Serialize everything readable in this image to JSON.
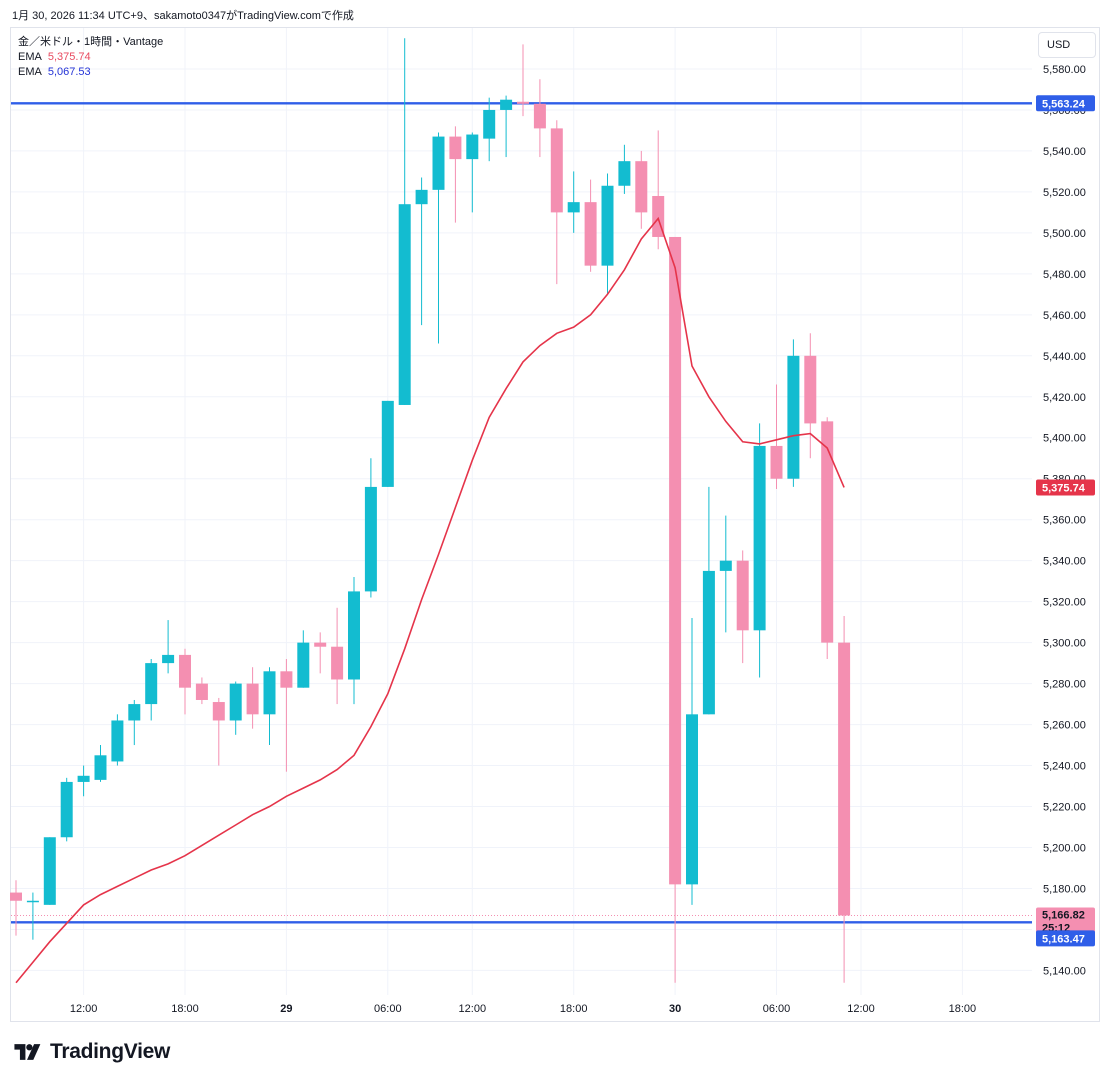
{
  "header": {
    "text": "1月 30, 2026 11:34 UTC+9、sakamoto0347がTradingView.comで作成"
  },
  "legend": {
    "symbol": "金／米ドル・1時間・Vantage",
    "ema1": {
      "label": "EMA",
      "value": "5,375.74",
      "color": "#e84a5f"
    },
    "ema2": {
      "label": "EMA",
      "value": "5,067.53",
      "color": "#2433d6"
    }
  },
  "currency": "USD",
  "footer": {
    "brand": "TradingView"
  },
  "colors": {
    "up": "#13bcd0",
    "down": "#f48fb1",
    "ema": "#e5344a",
    "hline": "#2f5ee8",
    "grid": "#f0f3fa"
  },
  "chart_data": {
    "type": "candlestick",
    "title": "金／米ドル・1時間・Vantage",
    "ylim": [
      5128,
      5600
    ],
    "y_ticks": [
      5140,
      5160,
      5180,
      5200,
      5220,
      5240,
      5260,
      5280,
      5300,
      5320,
      5340,
      5360,
      5380,
      5400,
      5420,
      5440,
      5460,
      5480,
      5500,
      5520,
      5540,
      5560,
      5580
    ],
    "y_tick_labels": [
      "5,140.00",
      "5,160.00",
      "5,180.00",
      "5,200.00",
      "5,220.00",
      "5,240.00",
      "5,260.00",
      "5,280.00",
      "5,300.00",
      "5,320.00",
      "5,340.00",
      "5,360.00",
      "5,380.00",
      "5,400.00",
      "5,420.00",
      "5,440.00",
      "5,460.00",
      "5,480.00",
      "5,500.00",
      "5,520.00",
      "5,540.00",
      "5,560.00",
      "5,580.00"
    ],
    "x_ticks": [
      {
        "bar": 4,
        "label": "12:00",
        "bold": false
      },
      {
        "bar": 10,
        "label": "18:00",
        "bold": false
      },
      {
        "bar": 16,
        "label": "29",
        "bold": true
      },
      {
        "bar": 22,
        "label": "06:00",
        "bold": false
      },
      {
        "bar": 27,
        "label": "12:00",
        "bold": false
      },
      {
        "bar": 33,
        "label": "18:00",
        "bold": false
      },
      {
        "bar": 39,
        "label": "30",
        "bold": true
      },
      {
        "bar": 45,
        "label": "06:00",
        "bold": false
      },
      {
        "bar": 50,
        "label": "12:00",
        "bold": false
      },
      {
        "bar": 56,
        "label": "18:00",
        "bold": false
      }
    ],
    "candles": [
      {
        "o": 5178,
        "h": 5184,
        "l": 5157,
        "c": 5174
      },
      {
        "o": 5174,
        "h": 5178,
        "l": 5155,
        "c": 5174
      },
      {
        "o": 5172,
        "h": 5205,
        "l": 5172,
        "c": 5205
      },
      {
        "o": 5205,
        "h": 5234,
        "l": 5203,
        "c": 5232
      },
      {
        "o": 5232,
        "h": 5240,
        "l": 5225,
        "c": 5235
      },
      {
        "o": 5233,
        "h": 5250,
        "l": 5232,
        "c": 5245
      },
      {
        "o": 5242,
        "h": 5265,
        "l": 5240,
        "c": 5262
      },
      {
        "o": 5262,
        "h": 5272,
        "l": 5250,
        "c": 5270
      },
      {
        "o": 5270,
        "h": 5292,
        "l": 5262,
        "c": 5290
      },
      {
        "o": 5290,
        "h": 5311,
        "l": 5285,
        "c": 5294
      },
      {
        "o": 5294,
        "h": 5297,
        "l": 5265,
        "c": 5278
      },
      {
        "o": 5280,
        "h": 5283,
        "l": 5270,
        "c": 5272
      },
      {
        "o": 5271,
        "h": 5273,
        "l": 5240,
        "c": 5262
      },
      {
        "o": 5262,
        "h": 5281,
        "l": 5255,
        "c": 5280
      },
      {
        "o": 5280,
        "h": 5288,
        "l": 5258,
        "c": 5265
      },
      {
        "o": 5265,
        "h": 5288,
        "l": 5250,
        "c": 5286
      },
      {
        "o": 5286,
        "h": 5292,
        "l": 5237,
        "c": 5278
      },
      {
        "o": 5278,
        "h": 5306,
        "l": 5278,
        "c": 5300
      },
      {
        "o": 5300,
        "h": 5305,
        "l": 5285,
        "c": 5298
      },
      {
        "o": 5298,
        "h": 5317,
        "l": 5270,
        "c": 5282
      },
      {
        "o": 5282,
        "h": 5332,
        "l": 5270,
        "c": 5325
      },
      {
        "o": 5325,
        "h": 5390,
        "l": 5322,
        "c": 5376
      },
      {
        "o": 5376,
        "h": 5418,
        "l": 5376,
        "c": 5418
      },
      {
        "o": 5416,
        "h": 5595,
        "l": 5416,
        "c": 5514
      },
      {
        "o": 5514,
        "h": 5527,
        "l": 5455,
        "c": 5521
      },
      {
        "o": 5521,
        "h": 5549,
        "l": 5446,
        "c": 5547
      },
      {
        "o": 5547,
        "h": 5552,
        "l": 5505,
        "c": 5536
      },
      {
        "o": 5536,
        "h": 5549,
        "l": 5510,
        "c": 5548
      },
      {
        "o": 5546,
        "h": 5566,
        "l": 5535,
        "c": 5560
      },
      {
        "o": 5560,
        "h": 5567,
        "l": 5537,
        "c": 5565
      },
      {
        "o": 5564,
        "h": 5592,
        "l": 5557,
        "c": 5563
      },
      {
        "o": 5563,
        "h": 5575,
        "l": 5537,
        "c": 5551
      },
      {
        "o": 5551,
        "h": 5555,
        "l": 5475,
        "c": 5510
      },
      {
        "o": 5510,
        "h": 5530,
        "l": 5500,
        "c": 5515
      },
      {
        "o": 5515,
        "h": 5526,
        "l": 5481,
        "c": 5484
      },
      {
        "o": 5484,
        "h": 5529,
        "l": 5470,
        "c": 5523
      },
      {
        "o": 5523,
        "h": 5543,
        "l": 5519,
        "c": 5535
      },
      {
        "o": 5535,
        "h": 5540,
        "l": 5502,
        "c": 5510
      },
      {
        "o": 5518,
        "h": 5550,
        "l": 5492,
        "c": 5498
      },
      {
        "o": 5498,
        "h": 5498,
        "l": 5134,
        "c": 5182
      },
      {
        "o": 5182,
        "h": 5312,
        "l": 5172,
        "c": 5265
      },
      {
        "o": 5265,
        "h": 5376,
        "l": 5265,
        "c": 5335
      },
      {
        "o": 5335,
        "h": 5362,
        "l": 5305,
        "c": 5340
      },
      {
        "o": 5340,
        "h": 5345,
        "l": 5290,
        "c": 5306
      },
      {
        "o": 5306,
        "h": 5407,
        "l": 5283,
        "c": 5396
      },
      {
        "o": 5396,
        "h": 5426,
        "l": 5375,
        "c": 5380
      },
      {
        "o": 5380,
        "h": 5448,
        "l": 5376,
        "c": 5440
      },
      {
        "o": 5440,
        "h": 5451,
        "l": 5390,
        "c": 5407
      },
      {
        "o": 5408,
        "h": 5410,
        "l": 5292,
        "c": 5300
      },
      {
        "o": 5300,
        "h": 5313,
        "l": 5134,
        "c": 5166.82
      }
    ],
    "ema": [
      5134,
      5144,
      5154,
      5163,
      5172,
      5177,
      5181,
      5185,
      5189,
      5192,
      5196,
      5201,
      5206,
      5211,
      5216,
      5220,
      5225,
      5229,
      5233,
      5238,
      5245,
      5259,
      5275,
      5297,
      5321,
      5343,
      5366,
      5389,
      5410,
      5424,
      5437,
      5445,
      5451,
      5454,
      5460,
      5470,
      5482,
      5497,
      5507,
      5483,
      5435,
      5420,
      5408,
      5398,
      5397,
      5399,
      5401,
      5402,
      5395,
      5375.74
    ],
    "price_lines": [
      {
        "value": 5563.24,
        "label": "5,563.24"
      },
      {
        "value": 5163.47,
        "label": "5,163.47"
      }
    ],
    "last_price": {
      "value": 5166.82,
      "label": "5,166.82",
      "countdown": "25:12"
    },
    "ema_last": {
      "value": 5375.74,
      "label": "5,375.74"
    }
  }
}
